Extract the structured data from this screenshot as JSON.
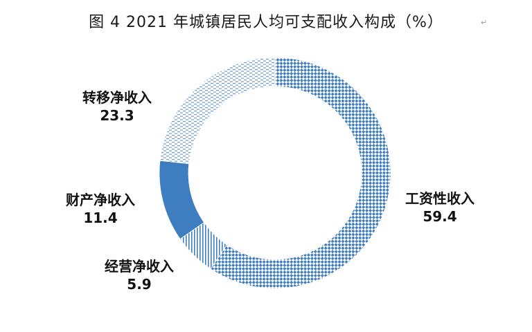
{
  "chart_data": {
    "type": "pie",
    "title": "图 4  2021 年城镇居民人均可支配收入构成（%）",
    "title_mark": "↵",
    "start_angle_deg": 0,
    "direction": "clockwise",
    "slices": [
      {
        "label": "工资性收入",
        "value": 59.4,
        "color": "#3d7dc0",
        "fill": "diamond-checker"
      },
      {
        "label": "经营净收入",
        "value": 5.9,
        "color": "#3d7dc0",
        "fill": "vertical-lines"
      },
      {
        "label": "财产净收入",
        "value": 11.4,
        "color": "#3d7dc0",
        "fill": "solid"
      },
      {
        "label": "转移净收入",
        "value": 23.3,
        "color": "#3d7dc0",
        "fill": "dashed-lines"
      }
    ]
  }
}
